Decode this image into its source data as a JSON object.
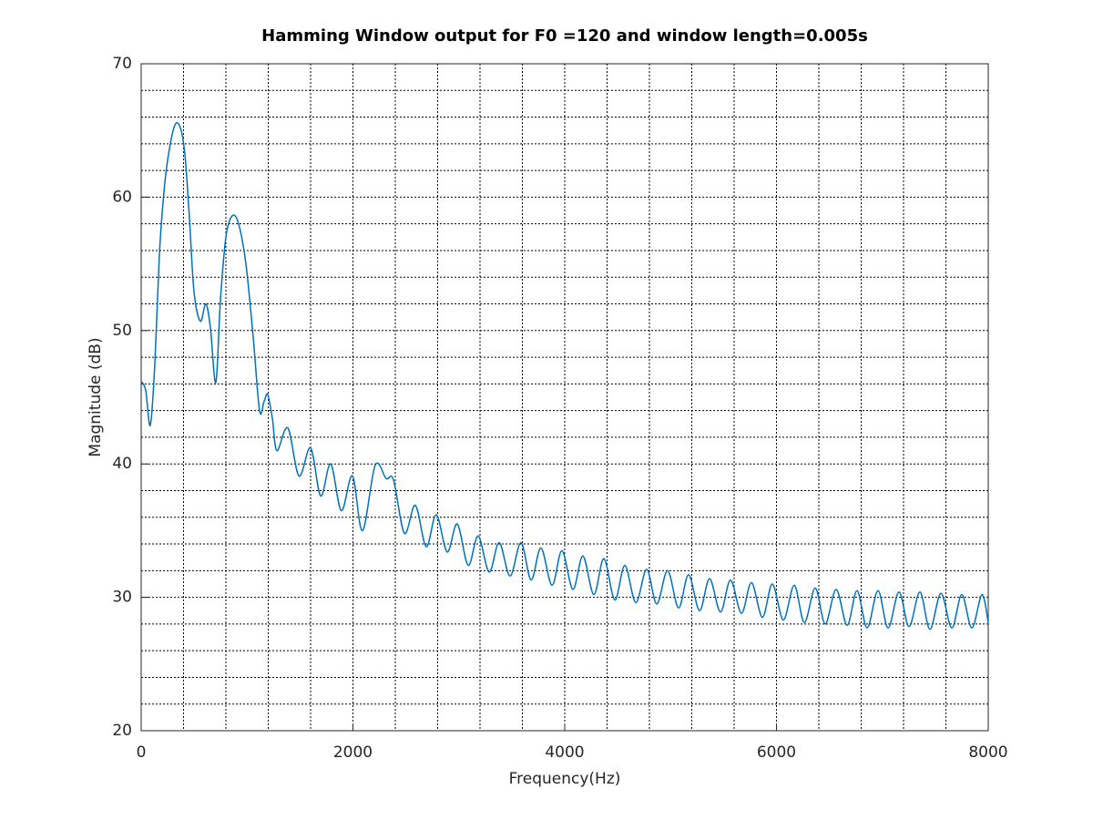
{
  "chart_data": {
    "type": "line",
    "title": "Hamming Window output for F0 =120 and window length=0.005s",
    "xlabel": "Frequency(Hz)",
    "ylabel": "Magnitude (dB)",
    "xlim": [
      0,
      8000
    ],
    "xticks": [
      0,
      2000,
      4000,
      6000,
      8000
    ],
    "ylim": [
      20,
      70
    ],
    "yticks": [
      20,
      30,
      40,
      50,
      60,
      70
    ],
    "grid": true,
    "minor_grid": true,
    "series": [
      {
        "color": "#0072bd",
        "x": [
          0,
          43,
          86,
          129,
          172,
          215,
          258,
          318,
          370,
          413,
          456,
          499,
          559,
          611,
          654,
          705,
          748,
          800,
          860,
          920,
          989,
          1058,
          1118,
          1161,
          1195,
          1239,
          1282,
          1385,
          1490,
          1600,
          1695,
          1790,
          1890,
          1995,
          2090,
          2210,
          2314,
          2383,
          2486,
          2589,
          2692,
          2787,
          2890,
          2985,
          3088,
          3183,
          3286,
          3381,
          3484,
          3587,
          3682,
          3776,
          3880,
          3974,
          4077,
          4172,
          4275,
          4370,
          4473,
          4568,
          4671,
          4774,
          4869,
          4972,
          5075,
          5170,
          5273,
          5368,
          5471,
          5566,
          5669,
          5764,
          5867,
          5961,
          6065,
          6168,
          6263,
          6366,
          6460,
          6564,
          6667,
          6761,
          6856,
          6959,
          7054,
          7157,
          7252,
          7355,
          7449,
          7553,
          7656,
          7750,
          7845,
          7940,
          8000
        ],
        "values": [
          46.2,
          45.5,
          42.9,
          47.5,
          55.7,
          60.4,
          63.2,
          65.4,
          65.2,
          63.2,
          58.4,
          52.9,
          50.7,
          52.0,
          50.2,
          46.1,
          52.2,
          57.0,
          58.6,
          58.0,
          55.0,
          49.5,
          44.0,
          44.7,
          45.2,
          43.4,
          41.0,
          42.7,
          39.1,
          41.2,
          37.6,
          40.0,
          36.5,
          39.1,
          35.0,
          39.9,
          38.9,
          38.8,
          34.8,
          36.9,
          33.8,
          36.2,
          33.4,
          35.5,
          32.4,
          34.6,
          31.9,
          34.1,
          31.6,
          34.1,
          31.3,
          33.7,
          30.9,
          33.5,
          30.6,
          33.1,
          30.2,
          32.9,
          29.8,
          32.4,
          29.6,
          32.1,
          29.5,
          32.0,
          29.2,
          31.7,
          29.0,
          31.4,
          28.9,
          31.3,
          28.8,
          31.1,
          28.5,
          31.0,
          28.3,
          30.9,
          28.1,
          30.7,
          28.0,
          30.6,
          27.9,
          30.5,
          27.7,
          30.5,
          27.7,
          30.4,
          27.8,
          30.4,
          27.6,
          30.3,
          27.7,
          30.2,
          27.7,
          30.2,
          28.1
        ]
      }
    ]
  }
}
